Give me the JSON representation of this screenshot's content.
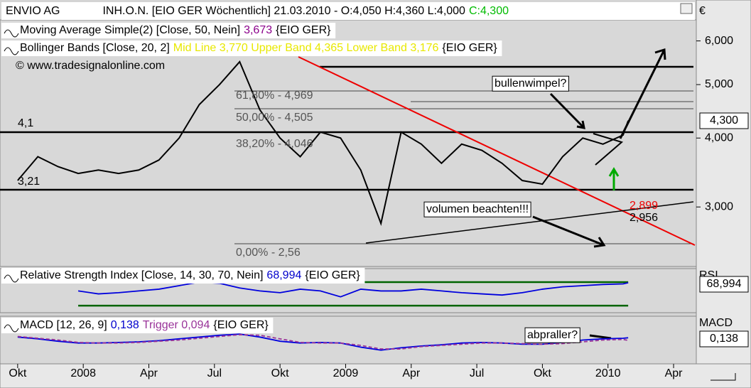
{
  "header": {
    "title": "ENVIO AG",
    "subtitle": "INH.O.N. [EIO GER  Wöchentlich] 21.03.2010 - O:4,050 H:4,360 L:4,000",
    "close": "C:4,300"
  },
  "chart_data": [
    {
      "type": "line",
      "log_scale": true,
      "axis_label": "€",
      "color": "#000000",
      "value_tag": "4,300",
      "indicators": [
        {
          "text": "Moving Average Simple(2) [Close, 50, Nein]",
          "value": "3,673",
          "suffix": "{EIO GER}"
        },
        {
          "text": "Bollinger Bands [Close, 20, 2]",
          "value": "Mid Line 3,770 Upper Band 4,365 Lower Band 3,176",
          "suffix": "{EIO GER}"
        }
      ],
      "annotations": [
        "© www.tradesignalonline.com",
        "4,1",
        "3,21",
        "61,80% - 4,969",
        "50,00% - 4,505",
        "38,20% - 4,046",
        "0,00% - 2,56",
        "bullenwimpel?",
        "volumen beachten!!!",
        "2,899",
        "2,956"
      ],
      "x": [
        0,
        4,
        8,
        12,
        16,
        20,
        24,
        28,
        32,
        36,
        40,
        44,
        48,
        52,
        56,
        60,
        64,
        68,
        72,
        76,
        80,
        84,
        88,
        92,
        96,
        100,
        104,
        108,
        112,
        116,
        120,
        121
      ],
      "values": [
        3350,
        3700,
        3550,
        3450,
        3500,
        3450,
        3500,
        3650,
        4000,
        4600,
        5000,
        5500,
        4500,
        4000,
        3700,
        4100,
        4000,
        3500,
        2800,
        4100,
        3900,
        3600,
        3900,
        3800,
        3600,
        3350,
        3300,
        3700,
        4000,
        3900,
        4050,
        4300
      ],
      "ylim": [
        2340,
        6550
      ],
      "yticks": [
        {
          "value": 3000,
          "label": "3,000"
        },
        {
          "value": 4000,
          "label": "4,000"
        },
        {
          "value": 5000,
          "label": "5,000"
        },
        {
          "value": 6000,
          "label": "6,000"
        }
      ]
    },
    {
      "type": "line",
      "axis_label": "RSI",
      "value_tag": "68,994",
      "indicator": {
        "text": "Relative Strength Index [Close, 14, 30, 70, Nein]",
        "value": "68,994",
        "suffix": "{EIO GER}"
      },
      "levels": [
        30,
        70
      ],
      "level_color": "#006400",
      "color": "#0000dd",
      "x": [
        12,
        16,
        20,
        24,
        28,
        32,
        36,
        40,
        44,
        48,
        52,
        56,
        60,
        64,
        68,
        72,
        76,
        80,
        84,
        88,
        92,
        96,
        100,
        104,
        108,
        112,
        116,
        120,
        121
      ],
      "values": [
        55,
        50,
        52,
        55,
        58,
        64,
        70,
        68,
        60,
        55,
        52,
        58,
        55,
        45,
        58,
        55,
        55,
        58,
        55,
        52,
        50,
        48,
        52,
        58,
        62,
        64,
        66,
        67,
        68.994
      ],
      "ylim": [
        18,
        93
      ]
    },
    {
      "type": "line",
      "axis_label": "MACD",
      "value_tag": "0,138",
      "indicator": {
        "text": "MACD [12, 26, 9]",
        "value": "0,138",
        "trigger": "Trigger 0,094",
        "suffix": "{EIO GER}"
      },
      "annotations": [
        "abpraller?"
      ],
      "x": [
        0,
        4,
        8,
        12,
        16,
        20,
        24,
        28,
        32,
        36,
        40,
        44,
        48,
        52,
        56,
        60,
        64,
        68,
        72,
        76,
        80,
        84,
        88,
        92,
        96,
        100,
        104,
        108,
        112,
        116,
        120,
        121
      ],
      "series": [
        {
          "name": "MACD",
          "color": "#0000dd",
          "values": [
            0.15,
            0.12,
            0.08,
            0.05,
            0.05,
            0.06,
            0.07,
            0.09,
            0.12,
            0.15,
            0.18,
            0.2,
            0.15,
            0.08,
            0.05,
            0.06,
            0.05,
            -0.02,
            -0.07,
            -0.03,
            0.0,
            0.02,
            0.05,
            0.06,
            0.05,
            0.03,
            0.03,
            0.06,
            0.1,
            0.12,
            0.13,
            0.138
          ]
        },
        {
          "name": "Trigger",
          "color": "#993399",
          "values": [
            0.16,
            0.13,
            0.1,
            0.06,
            0.05,
            0.05,
            0.06,
            0.08,
            0.1,
            0.13,
            0.16,
            0.19,
            0.18,
            0.12,
            0.06,
            0.05,
            0.05,
            0.01,
            -0.05,
            -0.05,
            -0.01,
            0.01,
            0.03,
            0.05,
            0.05,
            0.04,
            0.03,
            0.04,
            0.07,
            0.1,
            0.11,
            0.094
          ]
        }
      ],
      "ylim": [
        -0.3,
        0.5
      ],
      "xlim": [
        -3.5,
        134.5
      ],
      "xticks": [
        {
          "value": 0,
          "label": "Okt"
        },
        {
          "value": 13,
          "label": "2008"
        },
        {
          "value": 26,
          "label": "Apr"
        },
        {
          "value": 39,
          "label": "Jul"
        },
        {
          "value": 52,
          "label": "Okt"
        },
        {
          "value": 65,
          "label": "2009"
        },
        {
          "value": 78,
          "label": "Apr"
        },
        {
          "value": 91,
          "label": "Jul"
        },
        {
          "value": 104,
          "label": "Okt"
        },
        {
          "value": 117,
          "label": "2010"
        },
        {
          "value": 130,
          "label": "Apr"
        }
      ]
    }
  ]
}
